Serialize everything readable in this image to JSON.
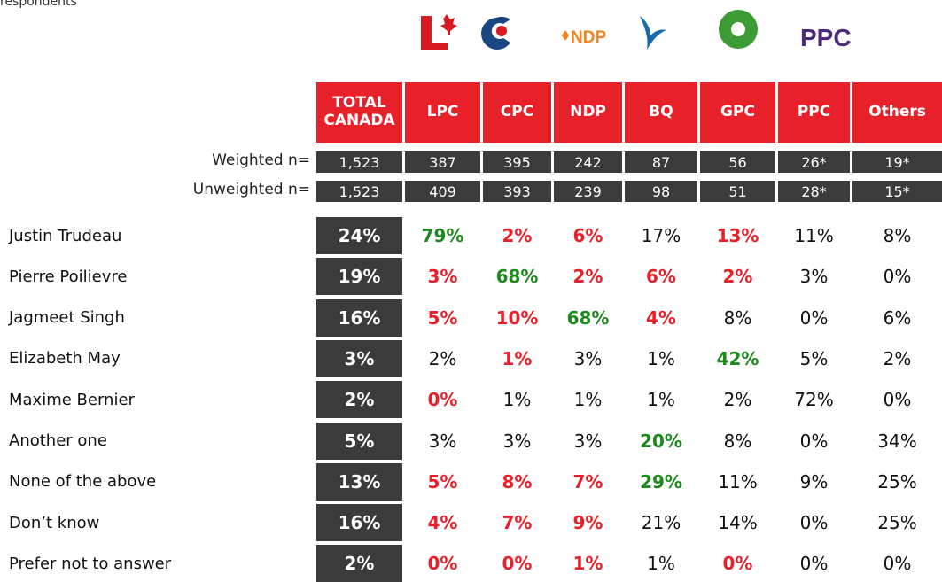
{
  "caption": "respondents",
  "logos": {
    "ndp": "NDP",
    "ppc": "PPC"
  },
  "table": {
    "headers": [
      "TOTAL CANADA",
      "LPC",
      "CPC",
      "NDP",
      "BQ",
      "GPC",
      "PPC",
      "Others"
    ],
    "n_rows": [
      {
        "label": "Weighted n=",
        "values": [
          "1,523",
          "387",
          "395",
          "242",
          "87",
          "56",
          "26*",
          "19*"
        ]
      },
      {
        "label": "Unweighted n=",
        "values": [
          "1,523",
          "409",
          "393",
          "239",
          "98",
          "51",
          "28*",
          "15*"
        ]
      }
    ],
    "rows": [
      {
        "label": "Justin Trudeau",
        "values": [
          "24%",
          "79%",
          "2%",
          "6%",
          "17%",
          "13%",
          "11%",
          "8%"
        ],
        "tones": [
          "none",
          "up",
          "down",
          "down",
          "none",
          "down",
          "none",
          "none"
        ]
      },
      {
        "label": "Pierre Poilievre",
        "values": [
          "19%",
          "3%",
          "68%",
          "2%",
          "6%",
          "2%",
          "3%",
          "0%"
        ],
        "tones": [
          "none",
          "down",
          "up",
          "down",
          "down",
          "down",
          "none",
          "none"
        ]
      },
      {
        "label": "Jagmeet Singh",
        "values": [
          "16%",
          "5%",
          "10%",
          "68%",
          "4%",
          "8%",
          "0%",
          "6%"
        ],
        "tones": [
          "none",
          "down",
          "down",
          "up",
          "down",
          "none",
          "none",
          "none"
        ]
      },
      {
        "label": "Elizabeth May",
        "values": [
          "3%",
          "2%",
          "1%",
          "3%",
          "1%",
          "42%",
          "5%",
          "2%"
        ],
        "tones": [
          "none",
          "none",
          "down",
          "none",
          "none",
          "up",
          "none",
          "none"
        ]
      },
      {
        "label": "Maxime Bernier",
        "values": [
          "2%",
          "0%",
          "1%",
          "1%",
          "1%",
          "2%",
          "72%",
          "0%"
        ],
        "tones": [
          "none",
          "down",
          "none",
          "none",
          "none",
          "none",
          "none",
          "none"
        ]
      },
      {
        "label": "Another one",
        "values": [
          "5%",
          "3%",
          "3%",
          "3%",
          "20%",
          "8%",
          "0%",
          "34%"
        ],
        "tones": [
          "none",
          "none",
          "none",
          "none",
          "up",
          "none",
          "none",
          "none"
        ]
      },
      {
        "label": "None of the above",
        "values": [
          "13%",
          "5%",
          "8%",
          "7%",
          "29%",
          "11%",
          "9%",
          "25%"
        ],
        "tones": [
          "none",
          "down",
          "down",
          "down",
          "up",
          "none",
          "none",
          "none"
        ]
      },
      {
        "label": "Don’t know",
        "values": [
          "16%",
          "4%",
          "7%",
          "9%",
          "21%",
          "14%",
          "0%",
          "25%"
        ],
        "tones": [
          "none",
          "down",
          "down",
          "down",
          "none",
          "none",
          "none",
          "none"
        ]
      },
      {
        "label": "Prefer not to answer",
        "values": [
          "2%",
          "0%",
          "0%",
          "1%",
          "1%",
          "0%",
          "0%",
          "0%"
        ],
        "tones": [
          "none",
          "down",
          "down",
          "down",
          "none",
          "down",
          "none",
          "none"
        ]
      }
    ]
  }
}
